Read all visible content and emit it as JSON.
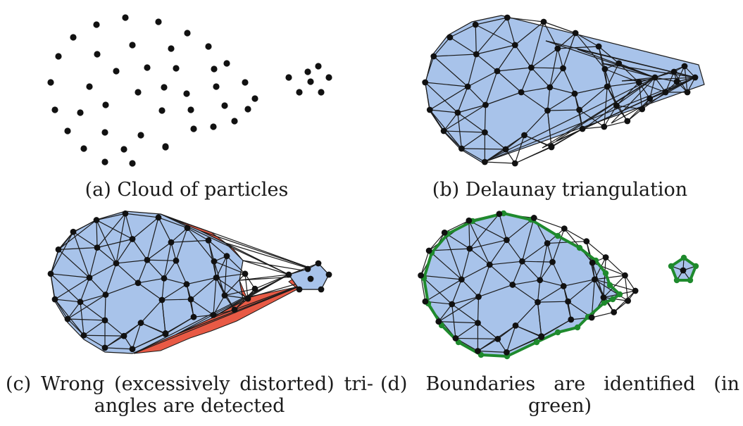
{
  "colors": {
    "mesh_fill": "#a8c3ea",
    "distorted_fill": "#e85a45",
    "boundary": "#1f8a2d",
    "particle": "#111111",
    "edge": "#1b1b1b"
  },
  "panels": [
    {
      "id": "a",
      "caption": "(a) Cloud of particles"
    },
    {
      "id": "b",
      "caption": "(b) Delaunay triangulation"
    },
    {
      "id": "c",
      "caption_line1": "(c) Wrong (excessively distorted) tri-",
      "caption_line2": "angles are detected"
    },
    {
      "id": "d",
      "caption_line1": "(d)  Boundaries  are  identified  (in",
      "caption_line2": "green)"
    }
  ]
}
